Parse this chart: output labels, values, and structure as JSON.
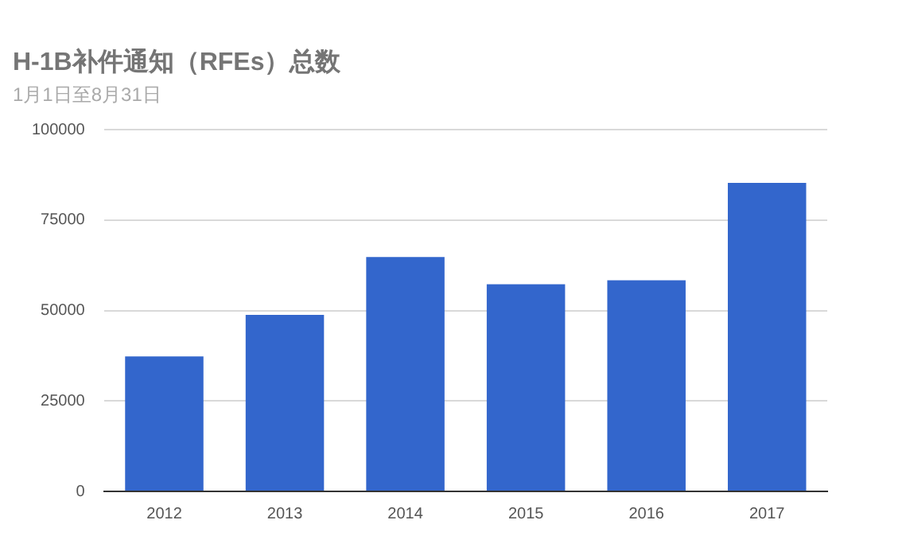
{
  "chart_data": {
    "type": "bar",
    "title": "H-1B补件通知（RFEs）总数",
    "subtitle": "1月1日至8月31日",
    "categories": [
      "2012",
      "2013",
      "2014",
      "2015",
      "2016",
      "2017"
    ],
    "values": [
      37300,
      48800,
      64800,
      57300,
      58400,
      85300
    ],
    "color": "#3366cc",
    "ylim": [
      0,
      100000
    ],
    "yticks": [
      0,
      25000,
      50000,
      75000,
      100000
    ],
    "grid": "y",
    "legend": false
  }
}
